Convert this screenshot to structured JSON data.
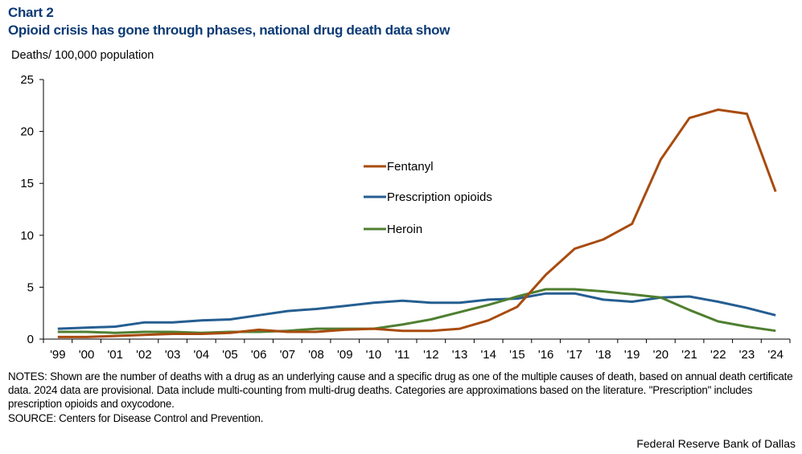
{
  "header": {
    "chart_label": "Chart 2",
    "title": "Opioid crisis has gone through phases, national drug death data show",
    "units": "Deaths/ 100,000 population"
  },
  "footer": {
    "notes": "NOTES: Shown are the number of deaths with a drug as an underlying cause and a specific drug as one of the multiple causes of death, based on annual death certificate data. 2024 data are provisional. Data include multi-counting from multi-drug deaths. Categories are approximations based on the literature. \"Prescription\" includes prescription opioids and oxycodone.",
    "source": "SOURCE: Centers for Disease Control and Prevention.",
    "credit": "Federal Reserve Bank of Dallas"
  },
  "chart_data": {
    "type": "line",
    "title": "Opioid crisis has gone through phases, national drug death data show",
    "xlabel": "",
    "ylabel": "Deaths/ 100,000 population",
    "ylim": [
      0,
      25
    ],
    "yticks": [
      0,
      5,
      10,
      15,
      20,
      25
    ],
    "grid": false,
    "legend_position": "center",
    "categories": [
      "'99",
      "'00",
      "'01",
      "'02",
      "'03",
      "'04",
      "'05",
      "'06",
      "'07",
      "'08",
      "'09",
      "'10",
      "'11",
      "'12",
      "'13",
      "'14",
      "'15",
      "'16",
      "'17",
      "'18",
      "'19",
      "'20",
      "'21",
      "'22",
      "'23",
      "'24"
    ],
    "series": [
      {
        "name": "Fentanyl",
        "color": "#a84b0f",
        "values": [
          0.2,
          0.2,
          0.3,
          0.4,
          0.5,
          0.5,
          0.6,
          0.9,
          0.7,
          0.7,
          0.9,
          1.0,
          0.8,
          0.8,
          1.0,
          1.8,
          3.1,
          6.2,
          8.7,
          9.6,
          11.1,
          17.3,
          21.3,
          22.1,
          21.7,
          14.2
        ]
      },
      {
        "name": "Prescription opioids",
        "color": "#255e91",
        "values": [
          1.0,
          1.1,
          1.2,
          1.6,
          1.6,
          1.8,
          1.9,
          2.3,
          2.7,
          2.9,
          3.2,
          3.5,
          3.7,
          3.5,
          3.5,
          3.8,
          3.9,
          4.4,
          4.4,
          3.8,
          3.6,
          4.0,
          4.1,
          3.6,
          3.0,
          2.3
        ]
      },
      {
        "name": "Heroin",
        "color": "#4f7f31",
        "values": [
          0.7,
          0.7,
          0.6,
          0.7,
          0.7,
          0.6,
          0.7,
          0.7,
          0.8,
          1.0,
          1.0,
          1.0,
          1.4,
          1.9,
          2.6,
          3.3,
          4.1,
          4.8,
          4.8,
          4.6,
          4.3,
          4.0,
          2.8,
          1.7,
          1.2,
          0.8
        ]
      }
    ]
  }
}
